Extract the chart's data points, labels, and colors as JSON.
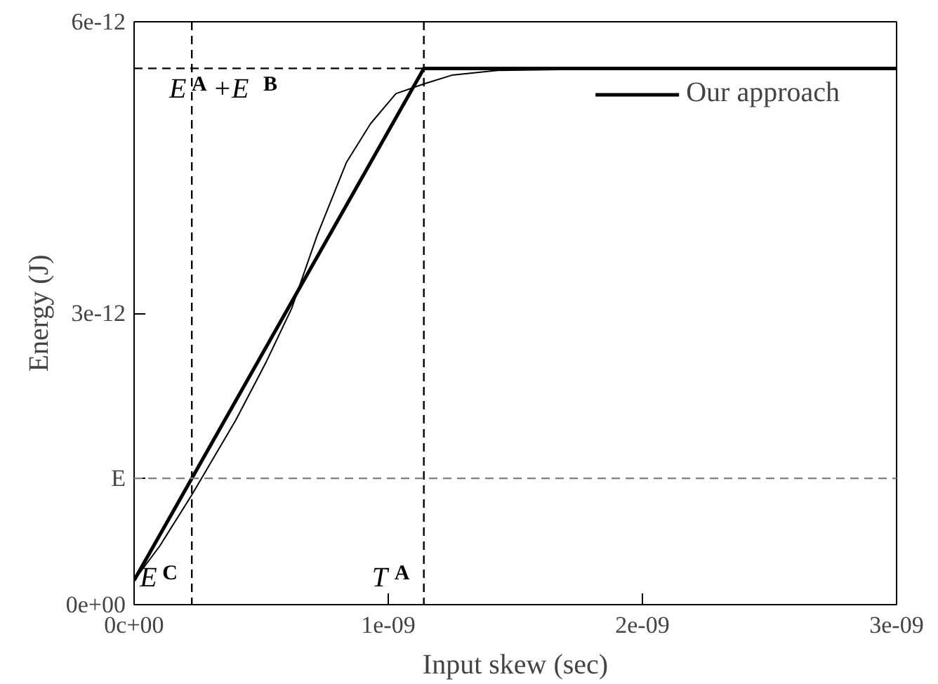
{
  "chart_data": {
    "type": "line",
    "xlabel": "Input skew (sec)",
    "ylabel": "Energy (J)",
    "xlim": [
      0,
      3e-09
    ],
    "ylim": [
      0,
      6e-12
    ],
    "xticks": [
      {
        "value": 0,
        "label": "0c+00"
      },
      {
        "value": 1e-09,
        "label": "1e-09"
      },
      {
        "value": 2e-09,
        "label": "2e-09"
      },
      {
        "value": 3e-09,
        "label": "3e-09"
      }
    ],
    "yticks": [
      {
        "value": 0,
        "label": "0e+00"
      },
      {
        "value": 3e-12,
        "label": "3e-12"
      },
      {
        "value": 6e-12,
        "label": "6e-12"
      }
    ],
    "series": [
      {
        "color": "#000000",
        "x": [
          0,
          1e-10,
          2.27e-10,
          4e-10,
          5.2e-10,
          6.2e-10,
          7.2e-10,
          8.35e-10,
          9.3e-10,
          1.03e-09,
          1.14e-09,
          1.25e-09,
          1.43e-09,
          2e-09,
          3e-09
        ],
        "values": [
          2.5e-13,
          6e-13,
          1.13e-12,
          1.9e-12,
          2.5e-12,
          3.05e-12,
          3.8e-12,
          4.55e-12,
          4.95e-12,
          5.26e-12,
          5.36e-12,
          5.45e-12,
          5.5e-12,
          5.52e-12,
          5.52e-12
        ]
      },
      {
        "name": "Our approach",
        "color": "#000000",
        "x": [
          0,
          1.14e-09,
          3e-09
        ],
        "values": [
          2.5e-13,
          5.52e-12,
          5.52e-12
        ]
      }
    ],
    "ref_lines": [
      {
        "axis": "y",
        "value": 5.52e-12,
        "label": "E$^{A}$ +E$^{B}$",
        "line_style": "dashed"
      },
      {
        "axis": "x",
        "value": 1.14e-09,
        "label": "T$^{A}$",
        "line_style": "dashed"
      },
      {
        "axis": "x",
        "value": 2.27e-10,
        "label": "E$^{C}$",
        "line_style": "dashed"
      },
      {
        "axis": "y",
        "value": 1.3e-12,
        "label": "E",
        "line_style": "dashed",
        "color": "#808080"
      }
    ],
    "legend": "top right",
    "grid": false
  }
}
